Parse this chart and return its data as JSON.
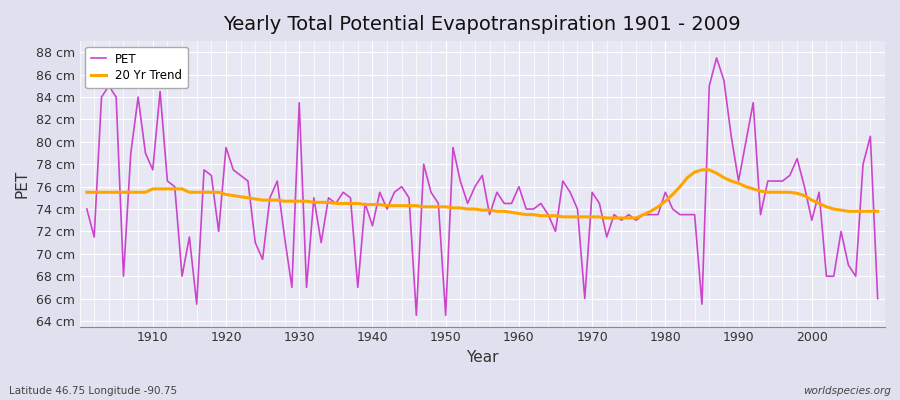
{
  "title": "Yearly Total Potential Evapotranspiration 1901 - 2009",
  "xlabel": "Year",
  "ylabel": "PET",
  "subtitle_left": "Latitude 46.75 Longitude -90.75",
  "subtitle_right": "worldspecies.org",
  "pet_color": "#cc44cc",
  "trend_color": "#FFA500",
  "fig_bg": "#e0e0ee",
  "plot_bg": "#e8e8f4",
  "ylim": [
    63.5,
    89.0
  ],
  "yticks": [
    64,
    66,
    68,
    70,
    72,
    74,
    76,
    78,
    80,
    82,
    84,
    86,
    88
  ],
  "years": [
    1901,
    1902,
    1903,
    1904,
    1905,
    1906,
    1907,
    1908,
    1909,
    1910,
    1911,
    1912,
    1913,
    1914,
    1915,
    1916,
    1917,
    1918,
    1919,
    1920,
    1921,
    1922,
    1923,
    1924,
    1925,
    1926,
    1927,
    1928,
    1929,
    1930,
    1931,
    1932,
    1933,
    1934,
    1935,
    1936,
    1937,
    1938,
    1939,
    1940,
    1941,
    1942,
    1943,
    1944,
    1945,
    1946,
    1947,
    1948,
    1949,
    1950,
    1951,
    1952,
    1953,
    1954,
    1955,
    1956,
    1957,
    1958,
    1959,
    1960,
    1961,
    1962,
    1963,
    1964,
    1965,
    1966,
    1967,
    1968,
    1969,
    1970,
    1971,
    1972,
    1973,
    1974,
    1975,
    1976,
    1977,
    1978,
    1979,
    1980,
    1981,
    1982,
    1983,
    1984,
    1985,
    1986,
    1987,
    1988,
    1989,
    1990,
    1991,
    1992,
    1993,
    1994,
    1995,
    1996,
    1997,
    1998,
    1999,
    2000,
    2001,
    2002,
    2003,
    2004,
    2005,
    2006,
    2007,
    2008,
    2009
  ],
  "pet": [
    74.0,
    71.5,
    84.0,
    85.0,
    84.0,
    68.0,
    79.0,
    84.0,
    79.0,
    77.5,
    84.5,
    76.5,
    76.0,
    68.0,
    71.5,
    65.5,
    77.5,
    77.0,
    72.0,
    79.5,
    77.5,
    77.0,
    76.5,
    71.0,
    69.5,
    75.0,
    76.5,
    71.5,
    67.0,
    83.5,
    67.0,
    75.0,
    71.0,
    75.0,
    74.5,
    75.5,
    75.0,
    67.0,
    74.5,
    72.5,
    75.5,
    74.0,
    75.5,
    76.0,
    75.0,
    64.5,
    78.0,
    75.5,
    74.5,
    64.5,
    79.5,
    76.5,
    74.5,
    76.0,
    77.0,
    73.5,
    75.5,
    74.5,
    74.5,
    76.0,
    74.0,
    74.0,
    74.5,
    73.5,
    72.0,
    76.5,
    75.5,
    74.0,
    66.0,
    75.5,
    74.5,
    71.5,
    73.5,
    73.0,
    73.5,
    73.0,
    73.5,
    73.5,
    73.5,
    75.5,
    74.0,
    73.5,
    73.5,
    73.5,
    65.5,
    85.0,
    87.5,
    85.5,
    80.5,
    76.5,
    80.0,
    83.5,
    73.5,
    76.5,
    76.5,
    76.5,
    77.0,
    78.5,
    76.0,
    73.0,
    75.5,
    68.0,
    68.0,
    72.0,
    69.0,
    68.0,
    78.0,
    80.5,
    66.0
  ],
  "trend": [
    75.5,
    75.5,
    75.5,
    75.5,
    75.5,
    75.5,
    75.5,
    75.5,
    75.5,
    75.8,
    75.8,
    75.8,
    75.8,
    75.8,
    75.5,
    75.5,
    75.5,
    75.5,
    75.5,
    75.3,
    75.2,
    75.1,
    75.0,
    74.9,
    74.8,
    74.8,
    74.8,
    74.7,
    74.7,
    74.7,
    74.7,
    74.6,
    74.6,
    74.6,
    74.5,
    74.5,
    74.5,
    74.5,
    74.4,
    74.4,
    74.4,
    74.3,
    74.3,
    74.3,
    74.3,
    74.3,
    74.2,
    74.2,
    74.2,
    74.2,
    74.1,
    74.1,
    74.0,
    74.0,
    73.9,
    73.9,
    73.8,
    73.8,
    73.7,
    73.6,
    73.5,
    73.5,
    73.4,
    73.4,
    73.4,
    73.3,
    73.3,
    73.3,
    73.3,
    73.3,
    73.3,
    73.2,
    73.2,
    73.2,
    73.2,
    73.2,
    73.5,
    73.8,
    74.2,
    74.7,
    75.3,
    76.0,
    76.8,
    77.3,
    77.5,
    77.5,
    77.2,
    76.8,
    76.5,
    76.3,
    76.0,
    75.8,
    75.6,
    75.5,
    75.5,
    75.5,
    75.5,
    75.4,
    75.2,
    74.8,
    74.5,
    74.2,
    74.0,
    73.9,
    73.8,
    73.8,
    73.8,
    73.8,
    73.8
  ]
}
